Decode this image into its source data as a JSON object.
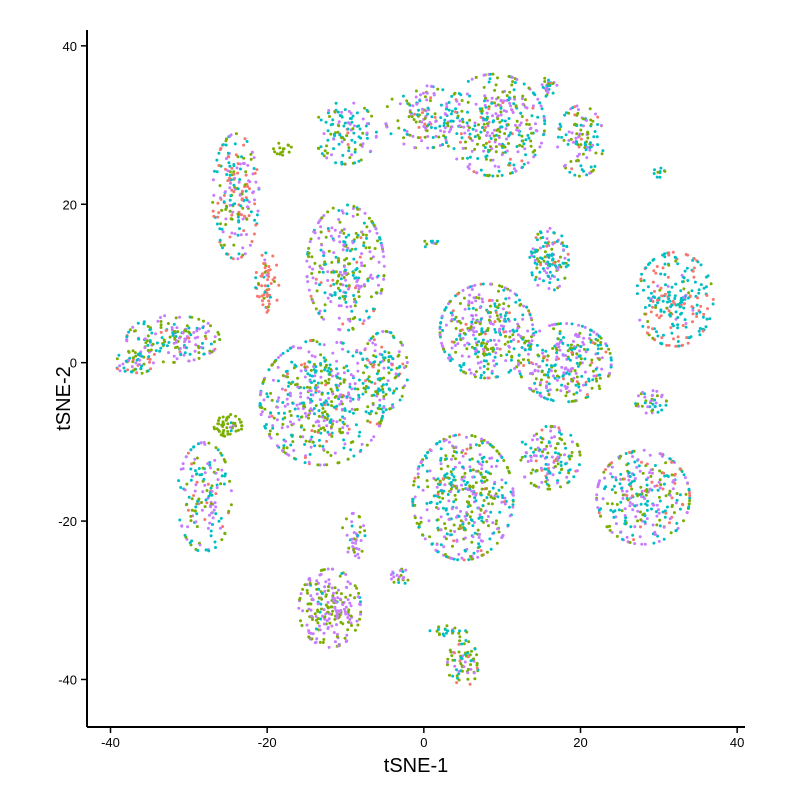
{
  "chart_data": {
    "type": "scatter",
    "title": "",
    "xlabel": "tSNE-1",
    "ylabel": "tSNE-2",
    "xlim": [
      -43,
      41
    ],
    "ylim": [
      -46,
      42
    ],
    "xticks": [
      -40,
      -20,
      0,
      20,
      40
    ],
    "yticks": [
      -40,
      -20,
      0,
      20,
      40
    ],
    "grid": false,
    "legend": "none",
    "point_colors": [
      "#F8766D",
      "#7CAE00",
      "#00BFC4",
      "#C77CFF"
    ],
    "clusters": [
      {
        "cx": 9,
        "cy": 30,
        "rx": 6.5,
        "ry": 6.5,
        "n": 340,
        "weights": [
          0.05,
          0.3,
          0.3,
          0.35
        ]
      },
      {
        "cx": 0,
        "cy": 31,
        "rx": 5,
        "ry": 4,
        "n": 140,
        "weights": [
          0.05,
          0.3,
          0.3,
          0.35
        ]
      },
      {
        "cx": -10,
        "cy": 29,
        "rx": 4,
        "ry": 4,
        "n": 120,
        "weights": [
          0.05,
          0.25,
          0.35,
          0.35
        ]
      },
      {
        "cx": 20,
        "cy": 28,
        "rx": 3,
        "ry": 4.5,
        "n": 110,
        "weights": [
          0.05,
          0.3,
          0.4,
          0.25
        ]
      },
      {
        "cx": 16,
        "cy": 35,
        "rx": 1,
        "ry": 1.5,
        "n": 25,
        "weights": [
          0.1,
          0.3,
          0.3,
          0.3
        ]
      },
      {
        "cx": 30,
        "cy": 24,
        "rx": 0.8,
        "ry": 0.6,
        "n": 10,
        "weights": [
          0.0,
          0.2,
          0.8,
          0.0
        ]
      },
      {
        "cx": -24,
        "cy": 21,
        "rx": 3,
        "ry": 8,
        "n": 200,
        "weights": [
          0.25,
          0.2,
          0.3,
          0.25
        ]
      },
      {
        "cx": -20,
        "cy": 10,
        "rx": 1.5,
        "ry": 4,
        "n": 60,
        "weights": [
          0.6,
          0.15,
          0.15,
          0.1
        ]
      },
      {
        "cx": -18,
        "cy": 27,
        "rx": 1.2,
        "ry": 0.8,
        "n": 15,
        "weights": [
          0.0,
          1.0,
          0.0,
          0.0
        ]
      },
      {
        "cx": -10,
        "cy": 12,
        "rx": 5,
        "ry": 8,
        "n": 300,
        "weights": [
          0.05,
          0.3,
          0.3,
          0.35
        ]
      },
      {
        "cx": -13,
        "cy": -5,
        "rx": 8,
        "ry": 8,
        "n": 500,
        "weights": [
          0.05,
          0.3,
          0.3,
          0.35
        ]
      },
      {
        "cx": -5,
        "cy": -1,
        "rx": 3,
        "ry": 5,
        "n": 120,
        "weights": [
          0.05,
          0.3,
          0.4,
          0.25
        ]
      },
      {
        "cx": -25,
        "cy": -8,
        "rx": 1.8,
        "ry": 1.5,
        "n": 50,
        "weights": [
          0.0,
          0.9,
          0.05,
          0.05
        ]
      },
      {
        "cx": -32,
        "cy": 3,
        "rx": 6,
        "ry": 3,
        "n": 180,
        "weights": [
          0.1,
          0.3,
          0.3,
          0.3
        ]
      },
      {
        "cx": -37,
        "cy": 0,
        "rx": 2.5,
        "ry": 1.5,
        "n": 50,
        "weights": [
          0.1,
          0.3,
          0.3,
          0.3
        ]
      },
      {
        "cx": -28,
        "cy": -17,
        "rx": 3.5,
        "ry": 7,
        "n": 160,
        "weights": [
          0.1,
          0.3,
          0.3,
          0.3
        ]
      },
      {
        "cx": 8,
        "cy": 4,
        "rx": 6,
        "ry": 6,
        "n": 350,
        "weights": [
          0.05,
          0.3,
          0.3,
          0.35
        ]
      },
      {
        "cx": 18,
        "cy": 0,
        "rx": 6,
        "ry": 5,
        "n": 300,
        "weights": [
          0.05,
          0.25,
          0.35,
          0.35
        ]
      },
      {
        "cx": 16,
        "cy": 13,
        "rx": 2.5,
        "ry": 4,
        "n": 120,
        "weights": [
          0.05,
          0.2,
          0.45,
          0.3
        ]
      },
      {
        "cx": 5,
        "cy": -17,
        "rx": 6.5,
        "ry": 8,
        "n": 450,
        "weights": [
          0.05,
          0.3,
          0.35,
          0.3
        ]
      },
      {
        "cx": 16,
        "cy": -12,
        "rx": 4,
        "ry": 4,
        "n": 140,
        "weights": [
          0.05,
          0.3,
          0.3,
          0.35
        ]
      },
      {
        "cx": 28,
        "cy": -17,
        "rx": 6,
        "ry": 6,
        "n": 300,
        "weights": [
          0.1,
          0.25,
          0.35,
          0.3
        ]
      },
      {
        "cx": 32,
        "cy": 8,
        "rx": 5,
        "ry": 6,
        "n": 230,
        "weights": [
          0.3,
          0.05,
          0.6,
          0.05
        ]
      },
      {
        "cx": 29,
        "cy": -5,
        "rx": 2,
        "ry": 1.5,
        "n": 40,
        "weights": [
          0.05,
          0.3,
          0.3,
          0.35
        ]
      },
      {
        "cx": -12,
        "cy": -31,
        "rx": 4,
        "ry": 5,
        "n": 230,
        "weights": [
          0.0,
          0.35,
          0.05,
          0.6
        ]
      },
      {
        "cx": -9,
        "cy": -22,
        "rx": 1.5,
        "ry": 3,
        "n": 40,
        "weights": [
          0.0,
          0.4,
          0.1,
          0.5
        ]
      },
      {
        "cx": -3,
        "cy": -27,
        "rx": 1.2,
        "ry": 1,
        "n": 20,
        "weights": [
          0.0,
          0.4,
          0.2,
          0.4
        ]
      },
      {
        "cx": 5,
        "cy": -38,
        "rx": 2,
        "ry": 3,
        "n": 70,
        "weights": [
          0.05,
          0.5,
          0.3,
          0.15
        ]
      },
      {
        "cx": 3,
        "cy": -34,
        "rx": 2.5,
        "ry": 0.8,
        "n": 25,
        "weights": [
          0.05,
          0.3,
          0.5,
          0.15
        ]
      },
      {
        "cx": 1,
        "cy": 15,
        "rx": 1.2,
        "ry": 0.5,
        "n": 10,
        "weights": [
          0.0,
          0.2,
          0.4,
          0.4
        ]
      }
    ]
  }
}
